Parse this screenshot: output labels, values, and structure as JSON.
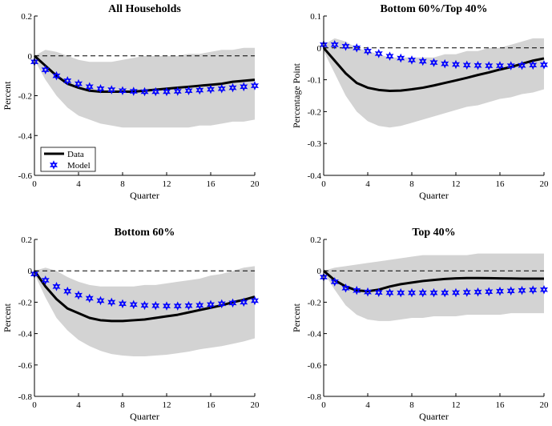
{
  "legend": {
    "data_label": "Data",
    "model_label": "Model"
  },
  "colors": {
    "data_line": "#000000",
    "model_marker": "#0000ff",
    "band": "#d3d3d3",
    "zero_line": "#000000"
  },
  "chart_data": [
    {
      "type": "line",
      "title": "All Households",
      "xlabel": "Quarter",
      "ylabel": "Percent",
      "xlim": [
        0,
        20
      ],
      "ylim": [
        -0.6,
        0.2
      ],
      "xticks": [
        "0",
        "4",
        "8",
        "12",
        "16",
        "20"
      ],
      "yticks": [
        "0.2",
        "0",
        "-0.2",
        "-0.4",
        "-0.6"
      ],
      "legend": "left",
      "x": [
        0,
        1,
        2,
        3,
        4,
        5,
        6,
        7,
        8,
        9,
        10,
        11,
        12,
        13,
        14,
        15,
        16,
        17,
        18,
        19,
        20
      ],
      "series": [
        {
          "name": "Data",
          "values": [
            0,
            -0.05,
            -0.1,
            -0.14,
            -0.16,
            -0.175,
            -0.18,
            -0.18,
            -0.18,
            -0.18,
            -0.175,
            -0.17,
            -0.165,
            -0.16,
            -0.155,
            -0.15,
            -0.145,
            -0.14,
            -0.13,
            -0.125,
            -0.12
          ]
        },
        {
          "name": "Model",
          "values": [
            -0.03,
            -0.07,
            -0.1,
            -0.125,
            -0.14,
            -0.155,
            -0.165,
            -0.17,
            -0.175,
            -0.178,
            -0.18,
            -0.18,
            -0.18,
            -0.178,
            -0.175,
            -0.172,
            -0.168,
            -0.165,
            -0.16,
            -0.155,
            -0.15
          ]
        }
      ],
      "band_upper": [
        0,
        0.03,
        0.02,
        0,
        -0.02,
        -0.03,
        -0.03,
        -0.03,
        -0.02,
        -0.01,
        0,
        0,
        0,
        0,
        0.01,
        0.01,
        0.02,
        0.03,
        0.03,
        0.04,
        0.04
      ],
      "band_lower": [
        -0.02,
        -0.12,
        -0.2,
        -0.26,
        -0.3,
        -0.32,
        -0.34,
        -0.35,
        -0.36,
        -0.36,
        -0.36,
        -0.36,
        -0.36,
        -0.36,
        -0.36,
        -0.35,
        -0.35,
        -0.34,
        -0.33,
        -0.33,
        -0.32
      ]
    },
    {
      "type": "line",
      "title": "Bottom 60%/Top 40%",
      "xlabel": "Quarter",
      "ylabel": "Percentage Point",
      "xlim": [
        0,
        20
      ],
      "ylim": [
        -0.4,
        0.1
      ],
      "xticks": [
        "0",
        "4",
        "8",
        "12",
        "16",
        "20"
      ],
      "yticks": [
        "0.1",
        "0",
        "-0.1",
        "-0.2",
        "-0.3",
        "-0.4"
      ],
      "x": [
        0,
        1,
        2,
        3,
        4,
        5,
        6,
        7,
        8,
        9,
        10,
        11,
        12,
        13,
        14,
        15,
        16,
        17,
        18,
        19,
        20
      ],
      "series": [
        {
          "name": "Data",
          "values": [
            0,
            -0.04,
            -0.08,
            -0.11,
            -0.125,
            -0.132,
            -0.135,
            -0.134,
            -0.13,
            -0.125,
            -0.118,
            -0.11,
            -0.102,
            -0.094,
            -0.085,
            -0.077,
            -0.068,
            -0.06,
            -0.05,
            -0.04,
            -0.033
          ]
        },
        {
          "name": "Model",
          "values": [
            0.01,
            0.01,
            0.005,
            0,
            -0.01,
            -0.018,
            -0.026,
            -0.032,
            -0.038,
            -0.042,
            -0.046,
            -0.05,
            -0.052,
            -0.054,
            -0.055,
            -0.056,
            -0.056,
            -0.056,
            -0.055,
            -0.054,
            -0.053
          ]
        }
      ],
      "band_upper": [
        0.01,
        0.03,
        0.02,
        0,
        -0.01,
        -0.02,
        -0.03,
        -0.03,
        -0.03,
        -0.03,
        -0.03,
        -0.02,
        -0.02,
        -0.01,
        -0.01,
        0,
        0,
        0.01,
        0.02,
        0.03,
        0.03
      ],
      "band_lower": [
        -0.01,
        -0.08,
        -0.15,
        -0.2,
        -0.23,
        -0.245,
        -0.25,
        -0.245,
        -0.235,
        -0.225,
        -0.215,
        -0.205,
        -0.195,
        -0.185,
        -0.18,
        -0.17,
        -0.16,
        -0.155,
        -0.145,
        -0.14,
        -0.13
      ]
    },
    {
      "type": "line",
      "title": "Bottom 60%",
      "xlabel": "Quarter",
      "ylabel": "Percent",
      "xlim": [
        0,
        20
      ],
      "ylim": [
        -0.8,
        0.2
      ],
      "xticks": [
        "0",
        "4",
        "8",
        "12",
        "16",
        "20"
      ],
      "yticks": [
        "0.2",
        "0",
        "-0.2",
        "-0.4",
        "-0.6",
        "-0.8"
      ],
      "x": [
        0,
        1,
        2,
        3,
        4,
        5,
        6,
        7,
        8,
        9,
        10,
        11,
        12,
        13,
        14,
        15,
        16,
        17,
        18,
        19,
        20
      ],
      "series": [
        {
          "name": "Data",
          "values": [
            0,
            -0.1,
            -0.18,
            -0.24,
            -0.27,
            -0.3,
            -0.315,
            -0.32,
            -0.32,
            -0.315,
            -0.31,
            -0.3,
            -0.29,
            -0.28,
            -0.265,
            -0.25,
            -0.235,
            -0.22,
            -0.2,
            -0.185,
            -0.165
          ]
        },
        {
          "name": "Model",
          "values": [
            -0.02,
            -0.06,
            -0.1,
            -0.13,
            -0.155,
            -0.175,
            -0.19,
            -0.2,
            -0.21,
            -0.215,
            -0.22,
            -0.222,
            -0.224,
            -0.224,
            -0.222,
            -0.22,
            -0.215,
            -0.21,
            -0.205,
            -0.2,
            -0.19
          ]
        }
      ],
      "band_upper": [
        0,
        0.02,
        0,
        -0.04,
        -0.07,
        -0.09,
        -0.1,
        -0.1,
        -0.1,
        -0.1,
        -0.09,
        -0.09,
        -0.08,
        -0.07,
        -0.06,
        -0.05,
        -0.03,
        -0.02,
        0,
        0.02,
        0.03
      ],
      "band_lower": [
        -0.02,
        -0.17,
        -0.3,
        -0.38,
        -0.44,
        -0.48,
        -0.51,
        -0.53,
        -0.54,
        -0.545,
        -0.545,
        -0.54,
        -0.535,
        -0.525,
        -0.515,
        -0.5,
        -0.49,
        -0.48,
        -0.465,
        -0.45,
        -0.43
      ]
    },
    {
      "type": "line",
      "title": "Top 40%",
      "xlabel": "Quarter",
      "ylabel": "Percent",
      "xlim": [
        0,
        20
      ],
      "ylim": [
        -0.8,
        0.2
      ],
      "xticks": [
        "0",
        "4",
        "8",
        "12",
        "16",
        "20"
      ],
      "yticks": [
        "0.2",
        "0",
        "-0.2",
        "-0.4",
        "-0.6",
        "-0.8"
      ],
      "x": [
        0,
        1,
        2,
        3,
        4,
        5,
        6,
        7,
        8,
        9,
        10,
        11,
        12,
        13,
        14,
        15,
        16,
        17,
        18,
        19,
        20
      ],
      "series": [
        {
          "name": "Data",
          "values": [
            0,
            -0.06,
            -0.1,
            -0.125,
            -0.13,
            -0.12,
            -0.1,
            -0.085,
            -0.075,
            -0.065,
            -0.058,
            -0.052,
            -0.048,
            -0.046,
            -0.046,
            -0.047,
            -0.048,
            -0.049,
            -0.05,
            -0.05,
            -0.05
          ]
        },
        {
          "name": "Model",
          "values": [
            -0.04,
            -0.07,
            -0.11,
            -0.125,
            -0.135,
            -0.138,
            -0.14,
            -0.14,
            -0.14,
            -0.14,
            -0.14,
            -0.14,
            -0.139,
            -0.137,
            -0.135,
            -0.133,
            -0.13,
            -0.128,
            -0.125,
            -0.122,
            -0.12
          ]
        }
      ],
      "band_upper": [
        0,
        0.02,
        0.03,
        0.04,
        0.05,
        0.06,
        0.07,
        0.08,
        0.09,
        0.1,
        0.1,
        0.1,
        0.1,
        0.1,
        0.11,
        0.11,
        0.11,
        0.11,
        0.11,
        0.11,
        0.11
      ],
      "band_lower": [
        -0.01,
        -0.12,
        -0.22,
        -0.28,
        -0.31,
        -0.32,
        -0.32,
        -0.31,
        -0.3,
        -0.3,
        -0.29,
        -0.29,
        -0.29,
        -0.28,
        -0.28,
        -0.28,
        -0.28,
        -0.27,
        -0.27,
        -0.27,
        -0.27
      ]
    }
  ]
}
